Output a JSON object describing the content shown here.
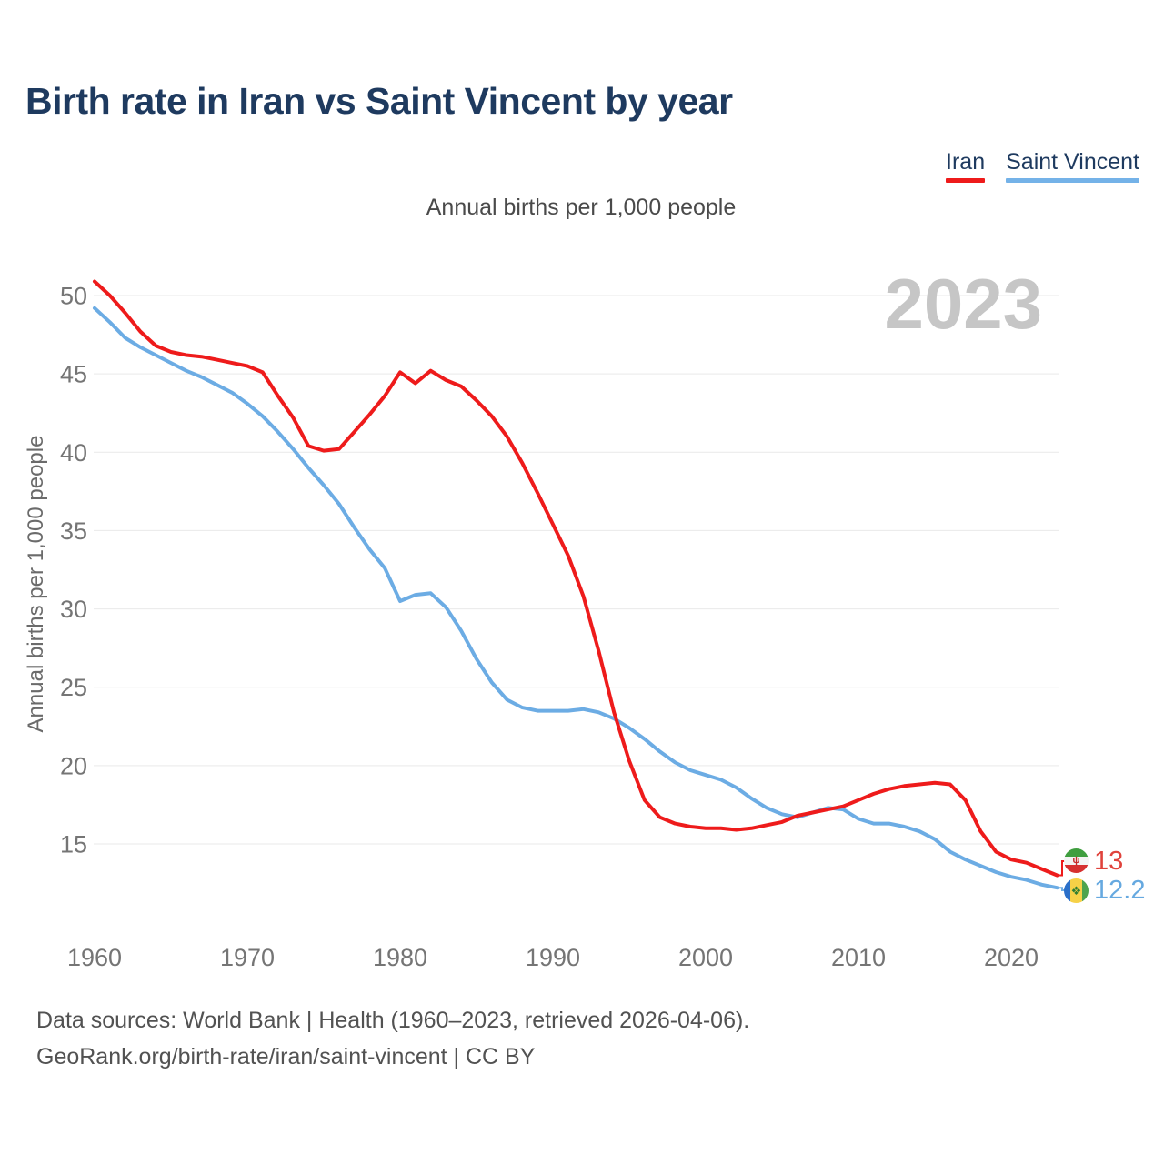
{
  "title": "Birth rate in Iran vs Saint Vincent by year",
  "subtitle": "Annual births per 1,000 people",
  "y_axis_title": "Annual births per 1,000 people",
  "watermark": "2023",
  "legend": {
    "items": [
      {
        "label": "Iran",
        "color": "#ee1b1b"
      },
      {
        "label": "Saint Vincent",
        "color": "#74b2e8"
      }
    ]
  },
  "end_labels": [
    {
      "series": "Iran",
      "value_label": "13",
      "color": "#e0433c",
      "flag": "iran-flag"
    },
    {
      "series": "Saint Vincent",
      "value_label": "12.2",
      "color": "#66a9e0",
      "flag": "saint-vincent-flag"
    }
  ],
  "icons": {
    "iran_emblem": "ψ",
    "saint_vincent_diamonds": "❖"
  },
  "footer": {
    "line1": "Data sources: World Bank | Health (1960–2023, retrieved 2026-04-06).",
    "line2": "GeoRank.org/birth-rate/iran/saint-vincent | CC BY"
  },
  "chart_data": {
    "type": "line",
    "title": "Birth rate in Iran vs Saint Vincent by year",
    "xlabel": "",
    "ylabel": "Annual births per 1,000 people",
    "xlim": [
      1960,
      2023
    ],
    "ylim": [
      11,
      52
    ],
    "grid": "horizontal",
    "legend_position": "top-right",
    "xticks": [
      1960,
      1970,
      1980,
      1990,
      2000,
      2010,
      2020
    ],
    "yticks": [
      15,
      20,
      25,
      30,
      35,
      40,
      45,
      50
    ],
    "x": [
      1960,
      1961,
      1962,
      1963,
      1964,
      1965,
      1966,
      1967,
      1968,
      1969,
      1970,
      1971,
      1972,
      1973,
      1974,
      1975,
      1976,
      1977,
      1978,
      1979,
      1980,
      1981,
      1982,
      1983,
      1984,
      1985,
      1986,
      1987,
      1988,
      1989,
      1990,
      1991,
      1992,
      1993,
      1994,
      1995,
      1996,
      1997,
      1998,
      1999,
      2000,
      2001,
      2002,
      2003,
      2004,
      2005,
      2006,
      2007,
      2008,
      2009,
      2010,
      2011,
      2012,
      2013,
      2014,
      2015,
      2016,
      2017,
      2018,
      2019,
      2020,
      2021,
      2022,
      2023
    ],
    "series": [
      {
        "name": "Iran",
        "color": "#ee1b1b",
        "end_value_label": "13",
        "values": [
          50.9,
          50.0,
          48.9,
          47.7,
          46.8,
          46.4,
          46.2,
          46.1,
          45.9,
          45.7,
          45.5,
          45.1,
          43.6,
          42.2,
          40.4,
          40.1,
          40.2,
          41.3,
          42.4,
          43.6,
          45.1,
          44.4,
          45.2,
          44.6,
          44.2,
          43.3,
          42.3,
          41.0,
          39.3,
          37.4,
          35.4,
          33.4,
          30.8,
          27.3,
          23.4,
          20.3,
          17.8,
          16.7,
          16.3,
          16.1,
          16.0,
          16.0,
          15.9,
          16.0,
          16.2,
          16.4,
          16.8,
          17.0,
          17.2,
          17.4,
          17.8,
          18.2,
          18.5,
          18.7,
          18.8,
          18.9,
          18.8,
          17.8,
          15.8,
          14.5,
          14.0,
          13.8,
          13.4,
          13.0
        ]
      },
      {
        "name": "Saint Vincent",
        "color": "#6cace4",
        "end_value_label": "12.2",
        "values": [
          49.2,
          48.3,
          47.3,
          46.7,
          46.2,
          45.7,
          45.2,
          44.8,
          44.3,
          43.8,
          43.1,
          42.3,
          41.3,
          40.2,
          39.0,
          37.9,
          36.7,
          35.2,
          33.8,
          32.6,
          30.5,
          30.9,
          31.0,
          30.1,
          28.6,
          26.8,
          25.3,
          24.2,
          23.7,
          23.5,
          23.5,
          23.5,
          23.6,
          23.4,
          23.0,
          22.4,
          21.7,
          20.9,
          20.2,
          19.7,
          19.4,
          19.1,
          18.6,
          17.9,
          17.3,
          16.9,
          16.7,
          17.0,
          17.3,
          17.2,
          16.6,
          16.3,
          16.3,
          16.1,
          15.8,
          15.3,
          14.5,
          14.0,
          13.6,
          13.2,
          12.9,
          12.7,
          12.4,
          12.2
        ]
      }
    ]
  }
}
